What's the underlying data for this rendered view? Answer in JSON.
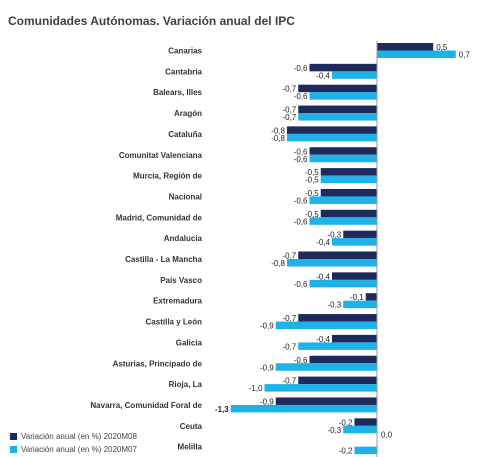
{
  "title": "Comunidades Autónomas. Variación anual del IPC",
  "colors": {
    "series_0": "#1f2a5c",
    "series_1": "#1fb2e8"
  },
  "chart_data": {
    "type": "bar",
    "orientation": "horizontal",
    "title": "Comunidades Autónomas. Variación anual del IPC",
    "categories": [
      "Canarias",
      "Cantabria",
      "Balears, Illes",
      "Aragón",
      "Cataluña",
      "Comunitat Valenciana",
      "Murcia, Región de",
      "Nacional",
      "Madrid, Comunidad de",
      "Andalucía",
      "Castilla - La Mancha",
      "País Vasco",
      "Extremadura",
      "Castilla y León",
      "Galicia",
      "Asturias, Principado de",
      "Rioja, La",
      "Navarra, Comunidad Foral de",
      "Ceuta",
      "Melilla"
    ],
    "series": [
      {
        "name": "Variación anual (en %) 2020M08",
        "values": [
          0.5,
          -0.6,
          -0.7,
          -0.7,
          -0.8,
          -0.6,
          -0.5,
          -0.5,
          -0.5,
          -0.3,
          -0.7,
          -0.4,
          -0.1,
          -0.7,
          -0.4,
          -0.6,
          -0.7,
          -0.9,
          -0.2,
          0.0
        ],
        "labels": [
          "0,5",
          "-0,6",
          "-0,7",
          "-0,7",
          "-0,8",
          "-0,6",
          "-0,5",
          "-0,5",
          "-0,5",
          "-0,3",
          "-0,7",
          "-0,4",
          "-0,1",
          "-0,7",
          "-0,4",
          "-0,6",
          "-0,7",
          "-0,9",
          "-0,2",
          "0,0"
        ]
      },
      {
        "name": "Variación anual (en %) 2020M07",
        "values": [
          0.7,
          -0.4,
          -0.6,
          -0.7,
          -0.8,
          -0.6,
          -0.5,
          -0.6,
          -0.6,
          -0.4,
          -0.8,
          -0.6,
          -0.3,
          -0.9,
          -0.7,
          -0.9,
          -1.0,
          -1.3,
          -0.3,
          -0.2
        ],
        "labels": [
          "0,7",
          "-0,4",
          "-0,6",
          "-0,7",
          "-0,8",
          "-0,6",
          "-0,5",
          "-0,6",
          "-0,6",
          "-0,4",
          "-0,8",
          "-0,6",
          "-0,3",
          "-0,9",
          "-0,7",
          "-0,9",
          "-1,0",
          "-1,3",
          "-0,3",
          "-0,2"
        ]
      }
    ],
    "xlim": [
      -1.3,
      0.7
    ],
    "grid": false,
    "legend_position": "bottom-left"
  }
}
